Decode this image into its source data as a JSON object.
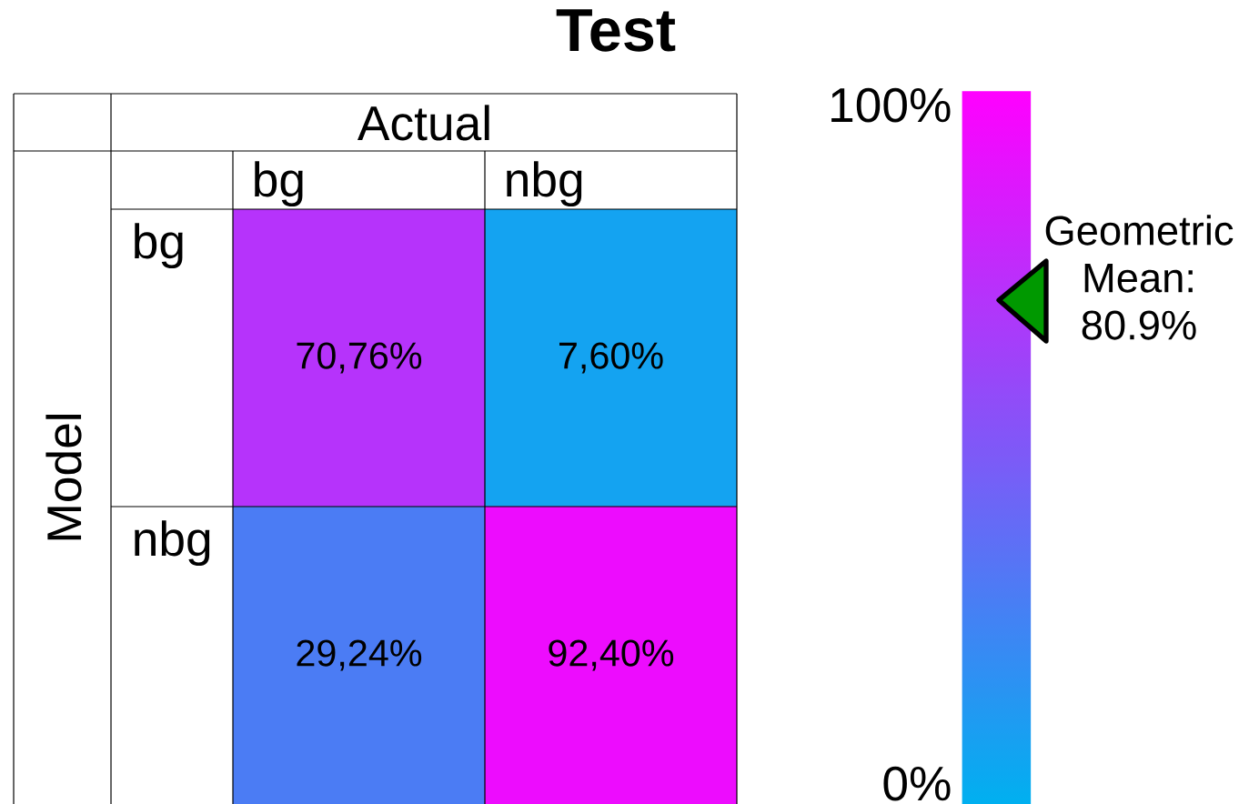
{
  "chart_data": {
    "type": "heatmap",
    "title": "Test",
    "xlabel": "Actual",
    "ylabel": "Model",
    "categories": [
      "bg",
      "nbg"
    ],
    "y_categories": [
      "bg",
      "nbg"
    ],
    "cells": [
      [
        70.76,
        7.6
      ],
      [
        29.24,
        92.4
      ]
    ],
    "cell_labels": [
      [
        "70,76%",
        "7,60%"
      ],
      [
        "29,24%",
        "92,40%"
      ]
    ],
    "clim": [
      0,
      100
    ],
    "cticks": [
      {
        "value": 0,
        "label": "0%"
      },
      {
        "value": 100,
        "label": "100%"
      }
    ],
    "annotations": [
      "Geometric Mean: 80.9%"
    ]
  }
}
